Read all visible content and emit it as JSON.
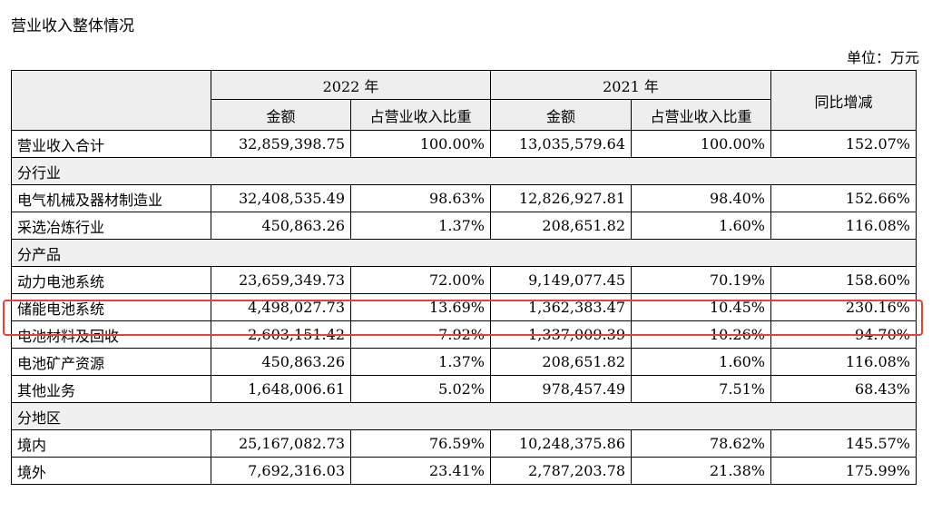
{
  "title": "营业收入整体情况",
  "unit": "单位：万元",
  "header": {
    "year_2022": "2022 年",
    "year_2021": "2021 年",
    "yoy": "同比增减",
    "amount": "金额",
    "share": "占营业收入比重"
  },
  "total": {
    "label": "营业收入合计",
    "a22": "32,859,398.75",
    "p22": "100.00%",
    "a21": "13,035,579.64",
    "p21": "100.00%",
    "yoy": "152.07%"
  },
  "sections": [
    {
      "label": "分行业",
      "rows": [
        {
          "label": "电气机械及器材制造业",
          "a22": "32,408,535.49",
          "p22": "98.63%",
          "a21": "12,826,927.81",
          "p21": "98.40%",
          "yoy": "152.66%"
        },
        {
          "label": "采选冶炼行业",
          "a22": "450,863.26",
          "p22": "1.37%",
          "a21": "208,651.82",
          "p21": "1.60%",
          "yoy": "116.08%"
        }
      ]
    },
    {
      "label": "分产品",
      "rows": [
        {
          "label": "动力电池系统",
          "a22": "23,659,349.73",
          "p22": "72.00%",
          "a21": "9,149,077.45",
          "p21": "70.19%",
          "yoy": "158.60%"
        },
        {
          "label": "储能电池系统",
          "a22": "4,498,027.73",
          "p22": "13.69%",
          "a21": "1,362,383.47",
          "p21": "10.45%",
          "yoy": "230.16%"
        },
        {
          "label": "电池材料及回收",
          "a22": "2,603,151.42",
          "p22": "7.92%",
          "a21": "1,337,009.39",
          "p21": "10.26%",
          "yoy": "94.70%"
        },
        {
          "label": "电池矿产资源",
          "a22": "450,863.26",
          "p22": "1.37%",
          "a21": "208,651.82",
          "p21": "1.60%",
          "yoy": "116.08%"
        },
        {
          "label": "其他业务",
          "a22": "1,648,006.61",
          "p22": "5.02%",
          "a21": "978,457.49",
          "p21": "7.51%",
          "yoy": "68.43%"
        }
      ]
    },
    {
      "label": "分地区",
      "rows": [
        {
          "label": "境内",
          "a22": "25,167,082.73",
          "p22": "76.59%",
          "a21": "10,248,375.86",
          "p21": "78.62%",
          "yoy": "145.57%"
        },
        {
          "label": "境外",
          "a22": "7,692,316.03",
          "p22": "23.41%",
          "a21": "2,787,203.78",
          "p21": "21.38%",
          "yoy": "175.99%"
        }
      ]
    }
  ],
  "highlight_color": "#e8403a"
}
